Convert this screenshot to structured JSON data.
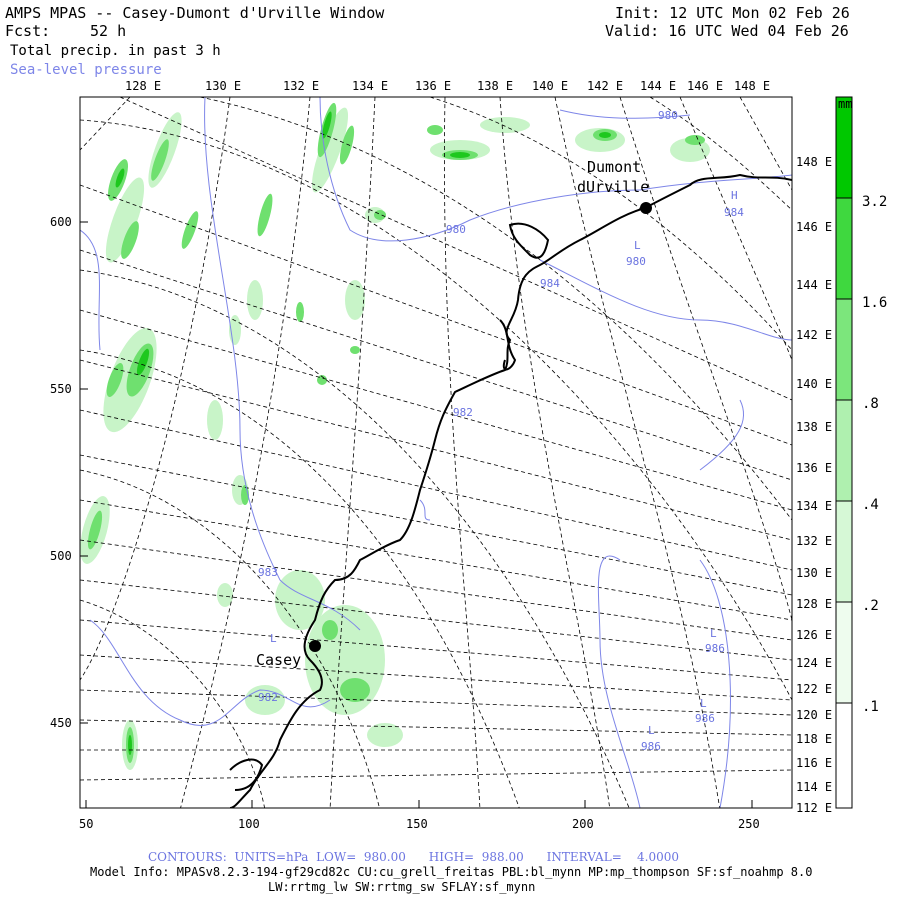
{
  "header": {
    "title": "AMPS MPAS -- Casey-Dumont d'Urville Window",
    "fcst_label": "Fcst:",
    "fcst_value": "52 h",
    "init": "Init: 12 UTC Mon 02 Feb 26",
    "valid": "Valid: 16 UTC Wed 04 Feb 26",
    "field1": "Total precip. in past 3 h",
    "field2": "Sea-level pressure"
  },
  "map": {
    "top_lon_labels": [
      "128 E",
      "130 E",
      "132 E",
      "134 E",
      "136 E",
      "138 E",
      "140 E",
      "142 E",
      "144 E",
      "146 E",
      "148 E"
    ],
    "right_lon_labels": [
      "148 E",
      "146 E",
      "144 E",
      "142 E",
      "140 E",
      "138 E",
      "136 E",
      "134 E",
      "132 E",
      "130 E",
      "128 E",
      "126 E",
      "124 E",
      "122 E",
      "120 E",
      "118 E",
      "116 E",
      "114 E",
      "112 E"
    ],
    "y_axis_labels": [
      "600",
      "550",
      "500",
      "450"
    ],
    "x_axis_labels": [
      "50",
      "100",
      "150",
      "200",
      "250"
    ],
    "stations": [
      {
        "name": "Casey"
      },
      {
        "name": "Dumont",
        "name2": "dUrville"
      }
    ],
    "pressure_labels": [
      "980",
      "980",
      "984",
      "982",
      "983",
      "982",
      "986",
      "986",
      "986",
      "984"
    ],
    "pressure_centers": [
      "L",
      "L",
      "L",
      "L",
      "H",
      "L"
    ]
  },
  "legend": {
    "unit": "mm",
    "levels": [
      "3.2",
      "1.6",
      ".8",
      ".4",
      ".2",
      ".1"
    ],
    "colors": [
      "#00c800",
      "#3fd83f",
      "#7ce67c",
      "#aff0af",
      "#d6f8d6",
      "#eefcee"
    ]
  },
  "footer": {
    "contours": "CONTOURS:  UNITS=hPa  LOW=  980.00      HIGH=  988.00      INTERVAL=    4.0000",
    "model_info": "Model Info: MPASv8.2.3-194-gf29cd82c CU:cu_grell_freitas PBL:bl_mynn MP:mp_thompson SF:sf_noahmp 8.0",
    "model_info2": "LW:rrtmg_lw SW:rrtmg_sw SFLAY:sf_mynn"
  },
  "colors": {
    "contour": "#7e86e8",
    "coast": "#000000",
    "grid": "#000000"
  }
}
